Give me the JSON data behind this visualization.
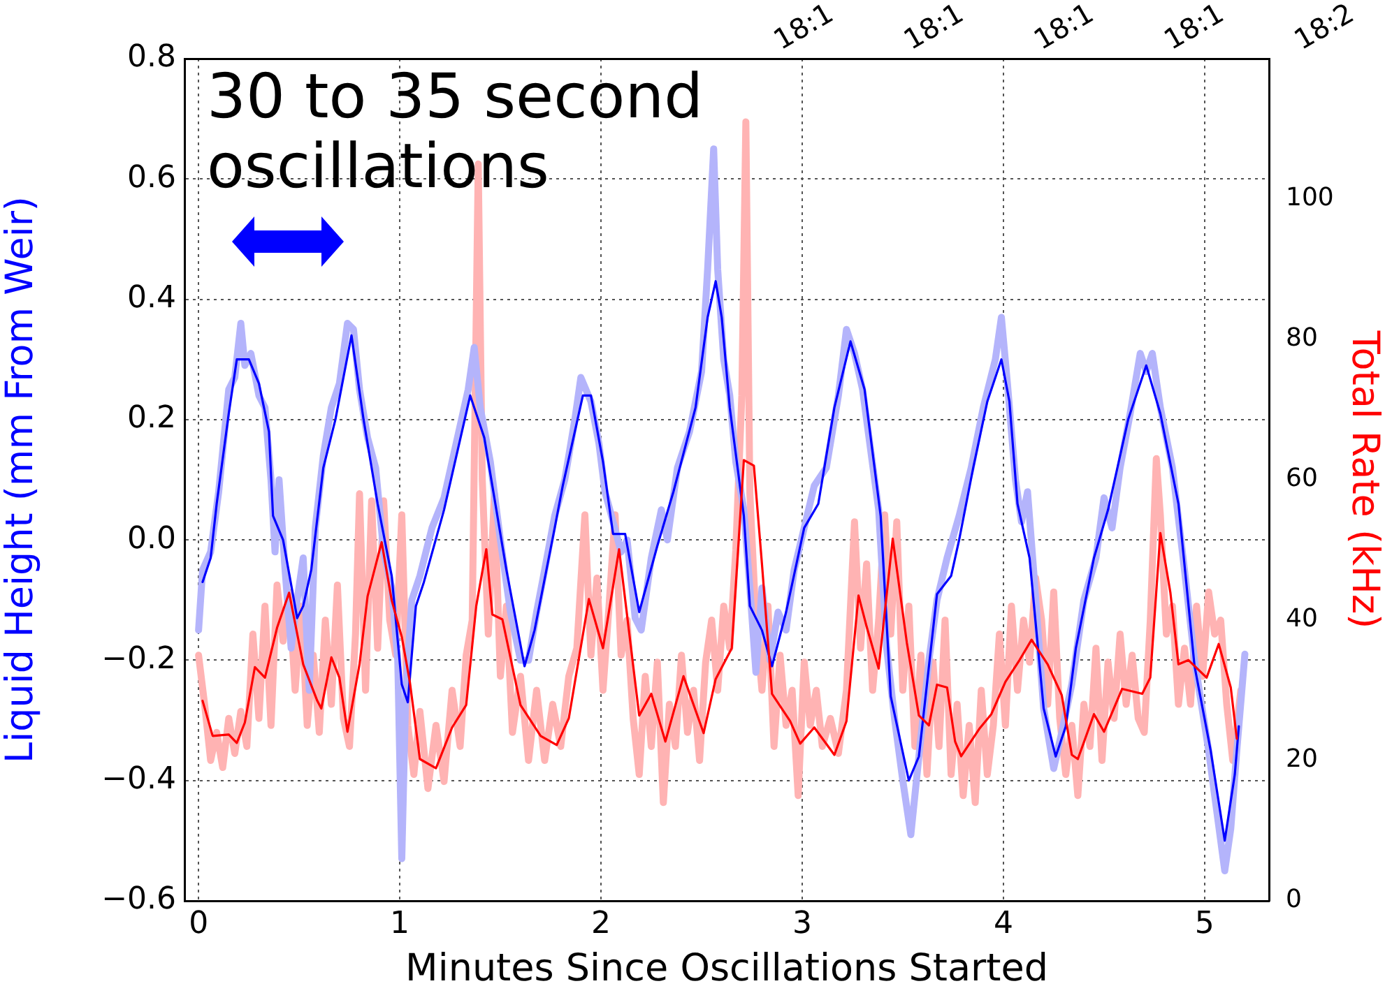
{
  "chart_data": {
    "type": "line",
    "xlabel": "Minutes Since Oscillations Started",
    "ylabel": "Liquid Height (mm From Weir)",
    "y2label": "Total Rate (kHz)",
    "annotations": [
      "30 to 35 second\noscillations",
      "18:1",
      "18:1",
      "18:1",
      "18:1",
      "18:2"
    ],
    "xlim": [
      -0.07,
      5.32
    ],
    "xticks": [
      0,
      1,
      2,
      3,
      4,
      5
    ],
    "ylim": [
      -0.6,
      0.8
    ],
    "yticks": [
      {
        "value": -0.6,
        "label": "−0.6"
      },
      {
        "value": -0.4,
        "label": "−0.4"
      },
      {
        "value": -0.2,
        "label": "−0.2"
      },
      {
        "value": 0,
        "label": "0.0"
      },
      {
        "value": 0.2,
        "label": "0.2"
      },
      {
        "value": 0.4,
        "label": "0.4"
      },
      {
        "value": 0.6,
        "label": "0.6"
      },
      {
        "value": 0.8,
        "label": "0.8"
      }
    ],
    "y2lim": [
      0,
      120
    ],
    "y2ticks": [
      0,
      20,
      40,
      60,
      80,
      100
    ],
    "grid": true,
    "legend": false,
    "marker": "none",
    "line_style": "solid",
    "series": [
      {
        "color": "#ffb3b3",
        "axis": "y2",
        "x": [
          0.0,
          0.03,
          0.06,
          0.09,
          0.12,
          0.15,
          0.18,
          0.21,
          0.24,
          0.27,
          0.3,
          0.33,
          0.36,
          0.39,
          0.42,
          0.45,
          0.48,
          0.51,
          0.54,
          0.57,
          0.6,
          0.63,
          0.66,
          0.69,
          0.72,
          0.75,
          0.78,
          0.8,
          0.83,
          0.86,
          0.89,
          0.92,
          0.95,
          0.98,
          1.01,
          1.04,
          1.07,
          1.1,
          1.14,
          1.18,
          1.22,
          1.26,
          1.3,
          1.33,
          1.36,
          1.39,
          1.41,
          1.44,
          1.47,
          1.5,
          1.53,
          1.56,
          1.6,
          1.64,
          1.68,
          1.72,
          1.76,
          1.8,
          1.84,
          1.88,
          1.92,
          1.95,
          1.98,
          2.01,
          2.04,
          2.07,
          2.1,
          2.13,
          2.16,
          2.19,
          2.22,
          2.25,
          2.28,
          2.31,
          2.34,
          2.37,
          2.4,
          2.43,
          2.46,
          2.49,
          2.52,
          2.55,
          2.58,
          2.61,
          2.64,
          2.67,
          2.7,
          2.72,
          2.74,
          2.77,
          2.8,
          2.83,
          2.86,
          2.89,
          2.92,
          2.95,
          2.98,
          3.01,
          3.04,
          3.07,
          3.1,
          3.14,
          3.18,
          3.22,
          3.26,
          3.29,
          3.32,
          3.35,
          3.38,
          3.41,
          3.44,
          3.47,
          3.5,
          3.53,
          3.56,
          3.59,
          3.62,
          3.65,
          3.68,
          3.71,
          3.74,
          3.77,
          3.8,
          3.83,
          3.86,
          3.89,
          3.92,
          3.95,
          3.98,
          4.01,
          4.04,
          4.07,
          4.1,
          4.13,
          4.16,
          4.19,
          4.22,
          4.25,
          4.28,
          4.31,
          4.34,
          4.37,
          4.4,
          4.43,
          4.46,
          4.49,
          4.52,
          4.55,
          4.58,
          4.61,
          4.64,
          4.67,
          4.7,
          4.73,
          4.76,
          4.78,
          4.81,
          4.84,
          4.87,
          4.9,
          4.93,
          4.96,
          4.99,
          5.02,
          5.05,
          5.08,
          5.11,
          5.14,
          5.18
        ],
        "values": [
          35,
          28,
          20,
          24,
          19,
          26,
          21,
          27,
          22,
          38,
          26,
          42,
          25,
          45,
          37,
          44,
          30,
          42,
          25,
          35,
          24,
          40,
          28,
          45,
          26,
          22,
          38,
          58,
          30,
          57,
          36,
          57,
          40,
          35,
          55,
          25,
          18,
          27,
          16,
          25,
          17,
          30,
          22,
          35,
          40,
          105,
          60,
          38,
          58,
          32,
          42,
          24,
          32,
          20,
          30,
          20,
          28,
          22,
          32,
          36,
          55,
          35,
          46,
          30,
          42,
          55,
          35,
          40,
          26,
          18,
          32,
          22,
          34,
          14,
          28,
          22,
          35,
          24,
          30,
          20,
          34,
          40,
          30,
          42,
          36,
          50,
          72,
          111,
          58,
          40,
          30,
          42,
          22,
          35,
          25,
          30,
          15,
          34,
          25,
          30,
          22,
          26,
          21,
          30,
          54,
          36,
          48,
          30,
          40,
          55,
          38,
          54,
          30,
          42,
          22,
          35,
          18,
          34,
          22,
          40,
          18,
          28,
          15,
          25,
          14,
          30,
          18,
          25,
          38,
          25,
          42,
          30,
          40,
          34,
          46,
          40,
          28,
          44,
          26,
          18,
          25,
          15,
          28,
          22,
          36,
          20,
          34,
          26,
          38,
          28,
          35,
          26,
          24,
          40,
          63,
          55,
          38,
          42,
          28,
          36,
          28,
          42,
          32,
          44,
          38,
          40,
          28,
          20,
          30
        ]
      },
      {
        "color": "#b4b4fb",
        "x": [
          0.0,
          0.02,
          0.06,
          0.1,
          0.15,
          0.18,
          0.21,
          0.23,
          0.26,
          0.3,
          0.33,
          0.36,
          0.38,
          0.4,
          0.43,
          0.46,
          0.49,
          0.52,
          0.55,
          0.58,
          0.62,
          0.66,
          0.7,
          0.74,
          0.77,
          0.8,
          0.84,
          0.88,
          0.92,
          0.96,
          0.99,
          1.01,
          1.03,
          1.06,
          1.1,
          1.16,
          1.22,
          1.28,
          1.34,
          1.37,
          1.4,
          1.45,
          1.5,
          1.55,
          1.6,
          1.64,
          1.68,
          1.72,
          1.77,
          1.82,
          1.87,
          1.9,
          1.95,
          1.99,
          2.02,
          2.06,
          2.1,
          2.13,
          2.17,
          2.2,
          2.25,
          2.3,
          2.33,
          2.38,
          2.44,
          2.5,
          2.53,
          2.56,
          2.58,
          2.61,
          2.64,
          2.67,
          2.71,
          2.74,
          2.77,
          2.8,
          2.84,
          2.88,
          2.92,
          2.96,
          3.01,
          3.06,
          3.12,
          3.18,
          3.22,
          3.26,
          3.3,
          3.34,
          3.38,
          3.42,
          3.46,
          3.5,
          3.54,
          3.58,
          3.63,
          3.67,
          3.72,
          3.78,
          3.84,
          3.9,
          3.96,
          3.99,
          4.02,
          4.06,
          4.09,
          4.12,
          4.15,
          4.2,
          4.25,
          4.29,
          4.34,
          4.4,
          4.46,
          4.5,
          4.54,
          4.58,
          4.63,
          4.68,
          4.71,
          4.74,
          4.78,
          4.84,
          4.9,
          4.95,
          5.02,
          5.06,
          5.1,
          5.13,
          5.16,
          5.2
        ],
        "values": [
          -0.15,
          -0.05,
          -0.02,
          0.08,
          0.25,
          0.27,
          0.36,
          0.29,
          0.31,
          0.24,
          0.22,
          0.1,
          -0.02,
          0.1,
          -0.05,
          -0.18,
          -0.1,
          -0.03,
          -0.25,
          0.02,
          0.14,
          0.22,
          0.26,
          0.36,
          0.35,
          0.25,
          0.17,
          0.12,
          -0.02,
          -0.08,
          -0.2,
          -0.53,
          -0.25,
          -0.1,
          -0.06,
          0.02,
          0.07,
          0.16,
          0.25,
          0.32,
          0.22,
          0.13,
          0.0,
          -0.12,
          -0.2,
          -0.2,
          -0.12,
          -0.05,
          0.04,
          0.1,
          0.2,
          0.27,
          0.23,
          0.16,
          0.08,
          0.03,
          -0.02,
          0.0,
          -0.13,
          -0.15,
          -0.03,
          0.05,
          0.0,
          0.12,
          0.18,
          0.28,
          0.45,
          0.65,
          0.45,
          0.3,
          0.24,
          0.13,
          0.05,
          -0.08,
          -0.22,
          -0.08,
          -0.2,
          -0.12,
          -0.15,
          -0.05,
          0.02,
          0.09,
          0.12,
          0.24,
          0.35,
          0.31,
          0.25,
          0.15,
          0.05,
          -0.18,
          -0.3,
          -0.4,
          -0.49,
          -0.36,
          -0.2,
          -0.1,
          -0.03,
          0.04,
          0.12,
          0.22,
          0.3,
          0.37,
          0.26,
          0.1,
          0.03,
          0.08,
          -0.05,
          -0.28,
          -0.38,
          -0.32,
          -0.24,
          -0.1,
          -0.03,
          0.07,
          0.02,
          0.12,
          0.21,
          0.31,
          0.28,
          0.31,
          0.22,
          0.12,
          -0.05,
          -0.2,
          -0.35,
          -0.45,
          -0.55,
          -0.48,
          -0.35,
          -0.19
        ]
      },
      {
        "color": "#0000ff",
        "x": [
          0.02,
          0.06,
          0.09,
          0.15,
          0.19,
          0.25,
          0.3,
          0.35,
          0.37,
          0.42,
          0.49,
          0.52,
          0.56,
          0.62,
          0.68,
          0.76,
          0.82,
          0.89,
          0.96,
          1.01,
          1.04,
          1.08,
          1.12,
          1.22,
          1.35,
          1.42,
          1.53,
          1.62,
          1.67,
          1.77,
          1.81,
          1.91,
          1.95,
          2.01,
          2.06,
          2.12,
          2.19,
          2.28,
          2.36,
          2.47,
          2.53,
          2.57,
          2.6,
          2.64,
          2.71,
          2.74,
          2.8,
          2.85,
          2.92,
          3.01,
          3.08,
          3.16,
          3.24,
          3.31,
          3.39,
          3.44,
          3.53,
          3.58,
          3.67,
          3.74,
          3.78,
          3.85,
          3.92,
          3.99,
          4.03,
          4.07,
          4.13,
          4.2,
          4.26,
          4.31,
          4.36,
          4.45,
          4.52,
          4.62,
          4.71,
          4.78,
          4.87,
          4.95,
          5.03,
          5.1,
          5.15,
          5.17
        ],
        "values": [
          -0.07,
          -0.03,
          0.06,
          0.21,
          0.3,
          0.3,
          0.26,
          0.18,
          0.04,
          0.0,
          -0.13,
          -0.11,
          -0.05,
          0.12,
          0.2,
          0.34,
          0.2,
          0.06,
          -0.06,
          -0.24,
          -0.27,
          -0.11,
          -0.07,
          0.05,
          0.24,
          0.17,
          -0.05,
          -0.21,
          -0.15,
          0.02,
          0.09,
          0.24,
          0.24,
          0.13,
          0.01,
          0.01,
          -0.12,
          -0.01,
          0.08,
          0.22,
          0.37,
          0.43,
          0.37,
          0.22,
          0.04,
          -0.11,
          -0.15,
          -0.21,
          -0.12,
          0.02,
          0.06,
          0.22,
          0.33,
          0.25,
          0.04,
          -0.26,
          -0.4,
          -0.36,
          -0.09,
          -0.06,
          0.0,
          0.12,
          0.23,
          0.3,
          0.23,
          0.06,
          -0.03,
          -0.28,
          -0.36,
          -0.31,
          -0.18,
          -0.03,
          0.05,
          0.2,
          0.29,
          0.21,
          0.06,
          -0.21,
          -0.35,
          -0.5,
          -0.39,
          -0.31
        ]
      },
      {
        "color": "#ff0000",
        "axis": "y2",
        "x": [
          0.02,
          0.07,
          0.15,
          0.19,
          0.23,
          0.28,
          0.33,
          0.39,
          0.45,
          0.52,
          0.59,
          0.61,
          0.66,
          0.7,
          0.74,
          0.8,
          0.84,
          0.91,
          0.96,
          1.01,
          1.05,
          1.1,
          1.18,
          1.26,
          1.33,
          1.38,
          1.43,
          1.46,
          1.51,
          1.6,
          1.7,
          1.78,
          1.84,
          1.94,
          2.01,
          2.09,
          2.19,
          2.25,
          2.32,
          2.41,
          2.51,
          2.57,
          2.65,
          2.71,
          2.76,
          2.8,
          2.85,
          2.94,
          2.99,
          3.06,
          3.16,
          3.22,
          3.28,
          3.32,
          3.38,
          3.45,
          3.52,
          3.58,
          3.63,
          3.67,
          3.72,
          3.76,
          3.79,
          3.88,
          3.94,
          4.01,
          4.08,
          4.14,
          4.22,
          4.29,
          4.34,
          4.37,
          4.45,
          4.5,
          4.59,
          4.69,
          4.73,
          4.78,
          4.83,
          4.87,
          4.92,
          5.01,
          5.07,
          5.13,
          5.16
        ],
        "values": [
          28.5,
          23.5,
          23.7,
          22.5,
          25.4,
          33.3,
          31.8,
          38.9,
          43.9,
          33.7,
          28.5,
          27.4,
          34.7,
          31.8,
          24.1,
          33.7,
          43.4,
          51.1,
          42.8,
          37.6,
          31.2,
          20.2,
          18.9,
          24.7,
          27.9,
          42.0,
          50.1,
          40.8,
          40.1,
          27.9,
          23.5,
          22.2,
          26.0,
          43.0,
          36.0,
          50.1,
          26.4,
          29.5,
          22.7,
          32.0,
          23.9,
          31.6,
          36.0,
          62.8,
          62.0,
          48.0,
          29.5,
          25.6,
          22.4,
          24.7,
          20.8,
          25.6,
          43.5,
          39.1,
          33.1,
          51.6,
          36.8,
          26.4,
          25.0,
          30.8,
          30.4,
          22.7,
          20.6,
          24.5,
          26.6,
          31.2,
          34.3,
          37.2,
          33.7,
          29.3,
          20.8,
          20.2,
          26.6,
          24.1,
          30.2,
          29.5,
          31.8,
          52.4,
          43.9,
          33.7,
          34.3,
          31.8,
          36.6,
          30.4,
          23.1
        ]
      }
    ]
  }
}
